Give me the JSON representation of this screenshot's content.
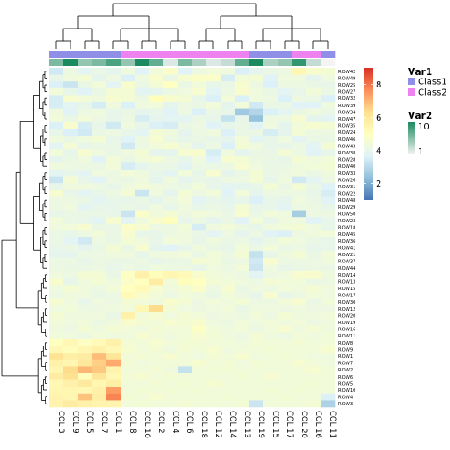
{
  "chart_data": {
    "type": "heatmap",
    "columns": [
      "COL 3",
      "COL 9",
      "COL 5",
      "COL 7",
      "COL 1",
      "COL 8",
      "COL 10",
      "COL 2",
      "COL 4",
      "COL 6",
      "COL 18",
      "COL 12",
      "COL 14",
      "COL 13",
      "COL 19",
      "COL 15",
      "COL 17",
      "COL 20",
      "COL 16",
      "COL 11"
    ],
    "rows": [
      "ROW42",
      "ROW49",
      "ROW25",
      "ROW27",
      "ROW32",
      "ROW39",
      "ROW34",
      "ROW47",
      "ROW35",
      "ROW24",
      "ROW46",
      "ROW43",
      "ROW38",
      "ROW28",
      "ROW40",
      "ROW33",
      "ROW26",
      "ROW31",
      "ROW22",
      "ROW48",
      "ROW29",
      "ROW50",
      "ROW23",
      "ROW18",
      "ROW45",
      "ROW36",
      "ROW41",
      "ROW21",
      "ROW37",
      "ROW44",
      "ROW14",
      "ROW13",
      "ROW15",
      "ROW17",
      "ROW30",
      "ROW12",
      "ROW20",
      "ROW19",
      "ROW16",
      "ROW11",
      "ROW8",
      "ROW9",
      "ROW1",
      "ROW7",
      "ROW2",
      "ROW6",
      "ROW5",
      "ROW10",
      "ROW4",
      "ROW3"
    ],
    "annotations": {
      "Var1": {
        "title": "Var1",
        "legend": [
          {
            "label": "Class1",
            "color": "#8f8fe8"
          },
          {
            "label": "Class2",
            "color": "#ee82ee"
          }
        ],
        "values": [
          "Class1",
          "Class1",
          "Class1",
          "Class1",
          "Class1",
          "Class2",
          "Class2",
          "Class2",
          "Class2",
          "Class2",
          "Class2",
          "Class2",
          "Class2",
          "Class2",
          "Class1",
          "Class1",
          "Class1",
          "Class2",
          "Class2",
          "Class1"
        ]
      },
      "Var2": {
        "title": "Var2",
        "range": [
          1,
          10
        ],
        "tick_labels": [
          "10",
          "1"
        ],
        "colors": [
          "#f4f4f4",
          "#1b8a5e"
        ],
        "values": [
          6,
          10,
          5,
          6,
          8,
          5,
          10,
          7,
          2,
          6,
          4,
          2,
          3,
          7,
          10,
          4,
          5,
          9,
          3,
          1
        ]
      }
    },
    "color_scale": {
      "range": [
        1,
        9
      ],
      "tick_labels": [
        "8",
        "6",
        "4",
        "2"
      ],
      "colors": [
        "#4575b4",
        "#91bfdb",
        "#e0f3f8",
        "#ffffbf",
        "#fee090",
        "#fc8d59",
        "#d73027"
      ]
    },
    "values": [
      [
        3.4,
        4.2,
        3.8,
        4.1,
        3.9,
        4.3,
        3.7,
        4.4,
        4.8,
        3.7,
        4.2,
        4.4,
        4.3,
        3.6,
        3.9,
        4.1,
        4.2,
        5.3,
        4.7,
        4.5
      ],
      [
        4.0,
        4.3,
        4.5,
        3.9,
        4.2,
        3.6,
        4.3,
        4.7,
        4.1,
        4.6,
        4.8,
        4.8,
        3.5,
        4.4,
        4.5,
        3.7,
        4.3,
        4.3,
        3.9,
        4.3
      ],
      [
        3.6,
        3.3,
        4.1,
        4.4,
        3.8,
        4.7,
        4.1,
        4.5,
        5.0,
        4.1,
        4.4,
        4.0,
        4.1,
        4.6,
        4.2,
        3.6,
        4.2,
        4.2,
        4.1,
        4.0
      ],
      [
        4.4,
        4.0,
        3.7,
        4.1,
        4.5,
        4.5,
        3.8,
        3.9,
        4.2,
        4.3,
        4.6,
        3.8,
        4.2,
        4.7,
        4.3,
        4.1,
        3.8,
        4.0,
        4.4,
        4.1
      ],
      [
        3.5,
        4.6,
        4.4,
        4.3,
        4.6,
        4.5,
        4.2,
        5.1,
        4.7,
        4.5,
        4.0,
        3.6,
        4.4,
        3.6,
        4.3,
        4.2,
        3.6,
        4.2,
        4.1,
        3.6
      ],
      [
        3.5,
        3.8,
        4.0,
        3.5,
        4.3,
        3.6,
        4.3,
        4.4,
        3.9,
        4.2,
        4.1,
        4.4,
        3.9,
        4.4,
        3.4,
        4.1,
        4.1,
        3.7,
        3.7,
        4.3
      ],
      [
        4.3,
        3.7,
        4.2,
        4.3,
        4.0,
        4.1,
        3.9,
        4.0,
        3.7,
        4.2,
        3.6,
        4.1,
        4.0,
        2.6,
        2.9,
        3.6,
        3.8,
        4.1,
        4.3,
        4.1
      ],
      [
        4.4,
        4.1,
        4.4,
        4.2,
        4.0,
        4.2,
        3.5,
        3.9,
        3.8,
        3.8,
        4.1,
        4.0,
        3.2,
        4.0,
        2.4,
        4.2,
        4.2,
        4.6,
        3.9,
        3.8
      ],
      [
        3.6,
        4.7,
        3.5,
        4.0,
        3.4,
        4.3,
        4.0,
        3.6,
        3.5,
        4.1,
        4.2,
        3.7,
        4.0,
        4.1,
        3.7,
        4.3,
        3.9,
        4.4,
        4.6,
        4.5
      ],
      [
        4.0,
        3.6,
        3.4,
        4.1,
        4.2,
        4.0,
        3.8,
        4.5,
        4.3,
        3.9,
        4.2,
        4.3,
        3.6,
        4.1,
        4.1,
        3.5,
        3.9,
        4.5,
        4.2,
        4.2
      ],
      [
        4.3,
        4.1,
        4.3,
        4.5,
        4.0,
        3.7,
        4.2,
        4.6,
        4.2,
        4.0,
        4.1,
        4.0,
        3.9,
        4.4,
        3.8,
        4.0,
        4.3,
        3.8,
        4.1,
        4.1
      ],
      [
        3.8,
        4.5,
        4.0,
        4.1,
        4.1,
        3.4,
        4.2,
        4.4,
        4.6,
        4.3,
        3.9,
        4.2,
        3.6,
        4.5,
        4.3,
        4.0,
        4.0,
        4.2,
        3.8,
        4.5
      ],
      [
        4.4,
        4.0,
        4.6,
        4.3,
        4.1,
        4.3,
        4.5,
        3.9,
        3.9,
        4.6,
        4.7,
        3.5,
        4.3,
        3.9,
        4.1,
        4.1,
        4.5,
        4.2,
        3.7,
        4.0
      ],
      [
        3.9,
        4.1,
        4.3,
        3.7,
        4.4,
        4.1,
        4.4,
        4.5,
        4.2,
        4.0,
        4.3,
        3.7,
        4.6,
        4.5,
        4.2,
        4.1,
        4.0,
        4.5,
        4.3,
        4.4
      ],
      [
        4.3,
        4.2,
        4.2,
        4.1,
        4.4,
        3.5,
        3.9,
        4.1,
        4.1,
        3.8,
        4.2,
        4.1,
        4.2,
        4.6,
        4.3,
        4.1,
        4.1,
        4.3,
        4.4,
        4.5
      ],
      [
        3.8,
        4.0,
        3.8,
        4.3,
        4.2,
        4.4,
        4.3,
        4.0,
        3.8,
        4.4,
        4.0,
        4.6,
        3.9,
        4.1,
        4.5,
        4.1,
        4.2,
        4.3,
        4.1,
        4.3
      ],
      [
        3.3,
        4.5,
        4.0,
        3.7,
        4.2,
        4.1,
        4.3,
        3.9,
        4.3,
        3.9,
        4.1,
        4.0,
        4.2,
        4.2,
        4.5,
        4.0,
        4.3,
        3.4,
        3.8,
        4.2
      ],
      [
        4.0,
        4.3,
        4.3,
        4.2,
        4.0,
        4.3,
        4.4,
        4.3,
        4.2,
        4.1,
        4.4,
        4.0,
        3.8,
        3.9,
        4.0,
        4.5,
        4.1,
        4.5,
        4.1,
        3.7
      ],
      [
        4.6,
        4.0,
        3.8,
        4.0,
        4.2,
        4.5,
        3.3,
        4.3,
        3.9,
        4.5,
        4.2,
        4.4,
        3.7,
        4.4,
        3.9,
        4.2,
        4.2,
        4.2,
        4.0,
        3.5
      ],
      [
        4.2,
        4.2,
        4.1,
        3.8,
        4.0,
        4.0,
        4.1,
        3.9,
        4.2,
        4.4,
        3.8,
        4.0,
        3.9,
        4.0,
        3.6,
        4.0,
        3.9,
        4.3,
        4.1,
        3.7
      ],
      [
        4.2,
        4.3,
        3.8,
        4.0,
        4.0,
        4.1,
        4.0,
        4.3,
        4.0,
        4.3,
        4.0,
        4.1,
        4.0,
        4.5,
        4.0,
        4.0,
        3.8,
        4.2,
        4.2,
        4.0
      ],
      [
        4.0,
        4.1,
        4.1,
        4.1,
        4.0,
        3.3,
        4.8,
        4.3,
        4.5,
        4.2,
        4.4,
        4.3,
        4.1,
        4.6,
        4.1,
        4.4,
        4.3,
        2.7,
        4.2,
        4.2
      ],
      [
        4.4,
        4.1,
        4.0,
        3.8,
        4.6,
        3.8,
        4.3,
        4.7,
        5.1,
        4.0,
        4.2,
        3.9,
        4.1,
        3.7,
        4.4,
        4.0,
        4.3,
        4.3,
        3.7,
        4.0
      ],
      [
        4.3,
        4.4,
        4.6,
        4.1,
        4.1,
        4.8,
        4.6,
        4.2,
        4.2,
        4.4,
        3.5,
        4.3,
        4.4,
        4.2,
        4.0,
        4.3,
        4.4,
        4.5,
        4.3,
        4.0
      ],
      [
        4.1,
        4.0,
        4.2,
        4.4,
        4.1,
        4.6,
        4.0,
        4.0,
        4.2,
        4.3,
        4.1,
        3.8,
        4.2,
        3.9,
        4.2,
        3.7,
        3.6,
        4.2,
        4.3,
        4.4
      ],
      [
        4.1,
        3.8,
        3.4,
        4.2,
        4.1,
        4.5,
        4.3,
        4.0,
        4.4,
        4.3,
        4.0,
        4.3,
        4.1,
        4.2,
        3.9,
        4.1,
        4.4,
        4.3,
        4.1,
        4.0
      ],
      [
        4.0,
        4.1,
        3.9,
        4.1,
        4.5,
        4.1,
        4.6,
        3.9,
        3.7,
        4.0,
        4.3,
        4.1,
        4.0,
        4.4,
        4.1,
        4.4,
        4.1,
        4.2,
        4.0,
        4.0
      ],
      [
        3.9,
        3.9,
        4.2,
        4.2,
        4.3,
        4.3,
        4.0,
        4.3,
        4.3,
        4.4,
        4.1,
        4.4,
        4.2,
        4.5,
        3.2,
        4.0,
        4.3,
        4.5,
        4.1,
        4.4
      ],
      [
        4.2,
        4.2,
        4.0,
        4.2,
        4.1,
        4.1,
        4.2,
        4.0,
        4.1,
        4.1,
        4.5,
        4.4,
        4.1,
        4.2,
        3.4,
        4.6,
        4.2,
        4.2,
        4.2,
        4.3
      ],
      [
        4.2,
        4.1,
        4.1,
        4.2,
        4.0,
        4.2,
        4.1,
        4.3,
        4.2,
        4.2,
        4.0,
        4.3,
        4.2,
        4.4,
        3.3,
        4.3,
        4.0,
        4.1,
        4.2,
        4.1
      ],
      [
        4.3,
        4.2,
        4.5,
        4.5,
        4.1,
        4.9,
        5.6,
        5.1,
        5.4,
        5.2,
        4.7,
        4.4,
        4.3,
        4.2,
        3.8,
        4.2,
        4.3,
        4.6,
        4.7,
        4.3
      ],
      [
        4.7,
        4.0,
        4.3,
        4.5,
        4.3,
        4.8,
        5.0,
        5.8,
        4.4,
        5.1,
        5.0,
        4.5,
        4.4,
        4.3,
        4.2,
        4.5,
        4.4,
        4.4,
        4.1,
        4.2
      ],
      [
        4.3,
        4.5,
        4.3,
        4.2,
        4.4,
        5.0,
        5.2,
        4.6,
        4.3,
        4.5,
        4.8,
        4.2,
        4.6,
        4.1,
        4.3,
        4.2,
        4.4,
        4.3,
        4.5,
        4.3
      ],
      [
        4.2,
        4.3,
        4.3,
        4.1,
        4.2,
        5.2,
        4.7,
        4.4,
        4.2,
        4.4,
        4.3,
        4.1,
        4.4,
        4.2,
        4.0,
        4.6,
        4.0,
        4.2,
        4.4,
        4.3
      ],
      [
        4.6,
        4.3,
        4.0,
        4.3,
        4.2,
        4.5,
        4.4,
        4.3,
        4.7,
        4.5,
        4.2,
        4.4,
        4.3,
        4.5,
        4.2,
        4.2,
        4.4,
        4.6,
        4.1,
        4.4
      ],
      [
        4.3,
        4.4,
        4.2,
        4.2,
        4.3,
        4.4,
        5.3,
        6.4,
        4.5,
        4.3,
        4.2,
        4.3,
        4.4,
        4.1,
        4.3,
        4.3,
        4.2,
        4.3,
        4.2,
        4.2
      ],
      [
        4.5,
        4.3,
        4.3,
        4.3,
        4.1,
        5.6,
        4.4,
        4.6,
        4.3,
        4.5,
        4.4,
        4.2,
        4.3,
        4.2,
        4.4,
        4.2,
        4.5,
        4.3,
        4.3,
        4.4
      ],
      [
        4.4,
        4.3,
        4.4,
        4.2,
        4.3,
        4.7,
        4.5,
        4.4,
        4.6,
        4.5,
        4.7,
        4.3,
        4.2,
        4.4,
        4.3,
        4.4,
        4.3,
        4.4,
        4.2,
        4.3
      ],
      [
        4.3,
        4.2,
        4.5,
        4.3,
        4.5,
        4.4,
        4.3,
        4.5,
        4.4,
        4.4,
        4.9,
        4.4,
        4.3,
        4.4,
        4.2,
        4.4,
        4.6,
        4.3,
        4.5,
        4.3
      ],
      [
        4.4,
        4.3,
        4.2,
        4.4,
        4.3,
        4.3,
        4.6,
        4.4,
        4.3,
        4.4,
        4.6,
        4.5,
        4.3,
        4.2,
        4.5,
        4.3,
        4.2,
        4.4,
        4.3,
        4.4
      ],
      [
        5.0,
        5.3,
        4.9,
        5.2,
        5.6,
        4.5,
        4.4,
        4.6,
        4.4,
        4.5,
        4.5,
        4.4,
        4.4,
        4.3,
        4.5,
        4.4,
        4.4,
        4.5,
        4.4,
        4.4
      ],
      [
        5.3,
        5.1,
        5.4,
        5.6,
        5.3,
        4.6,
        4.4,
        4.5,
        4.3,
        4.5,
        4.4,
        4.6,
        4.3,
        4.4,
        4.4,
        4.5,
        4.4,
        4.4,
        4.4,
        4.6
      ],
      [
        6.2,
        5.7,
        5.8,
        6.9,
        6.1,
        4.4,
        4.5,
        4.4,
        4.6,
        4.4,
        4.3,
        4.5,
        4.4,
        4.6,
        4.3,
        4.4,
        4.5,
        4.4,
        4.3,
        4.3
      ],
      [
        5.6,
        5.4,
        6.0,
        6.6,
        7.2,
        4.5,
        4.3,
        4.4,
        4.4,
        4.4,
        4.6,
        4.4,
        4.5,
        4.3,
        4.5,
        4.4,
        4.4,
        4.6,
        4.4,
        4.3
      ],
      [
        5.4,
        6.4,
        7.0,
        6.7,
        5.5,
        4.4,
        4.4,
        4.5,
        4.3,
        3.2,
        4.4,
        4.5,
        4.5,
        4.4,
        4.4,
        4.4,
        4.4,
        4.4,
        4.6,
        4.4
      ],
      [
        5.8,
        6.3,
        5.1,
        6.1,
        5.3,
        4.5,
        4.6,
        4.4,
        4.5,
        4.4,
        4.4,
        4.4,
        4.4,
        4.5,
        4.4,
        4.6,
        4.4,
        4.4,
        4.4,
        4.4
      ],
      [
        5.3,
        5.6,
        5.9,
        5.4,
        5.7,
        4.4,
        4.4,
        4.5,
        4.4,
        4.5,
        4.4,
        4.6,
        4.4,
        4.4,
        4.4,
        4.4,
        4.4,
        4.4,
        4.5,
        4.4
      ],
      [
        5.4,
        5.4,
        5.3,
        5.6,
        7.4,
        4.4,
        4.5,
        4.4,
        4.5,
        4.4,
        4.5,
        4.4,
        4.4,
        4.4,
        4.4,
        4.5,
        4.4,
        4.5,
        4.4,
        4.4
      ],
      [
        5.5,
        5.4,
        6.8,
        5.7,
        7.8,
        4.5,
        4.4,
        4.6,
        4.4,
        4.4,
        4.4,
        4.4,
        4.5,
        4.4,
        4.4,
        4.4,
        4.5,
        4.4,
        4.4,
        3.6
      ],
      [
        5.5,
        5.8,
        5.6,
        5.5,
        5.5,
        4.4,
        4.5,
        4.4,
        4.4,
        4.5,
        4.4,
        4.4,
        4.4,
        4.5,
        3.3,
        4.4,
        4.4,
        4.4,
        4.5,
        2.8
      ]
    ],
    "column_dendrogram": {
      "leaves": 20,
      "merges": [
        [
          [
            0,
            1
          ],
          [
            2,
            3
          ],
          [
            4,
            5
          ],
          [
            6,
            7
          ],
          [
            8,
            9
          ],
          [
            10,
            11
          ],
          [
            12,
            13
          ],
          [
            14,
            15
          ],
          [
            16,
            17
          ],
          [
            18,
            19
          ]
        ],
        [
          [
            0,
            1,
            2
          ],
          [
            3,
            4
          ],
          [
            5,
            6,
            7
          ],
          [
            8,
            9,
            10
          ],
          [
            11,
            12
          ],
          [
            13,
            14,
            15
          ],
          [
            16,
            17,
            18,
            19
          ]
        ]
      ]
    },
    "row_dendrogram": {
      "leaves": 50
    }
  }
}
